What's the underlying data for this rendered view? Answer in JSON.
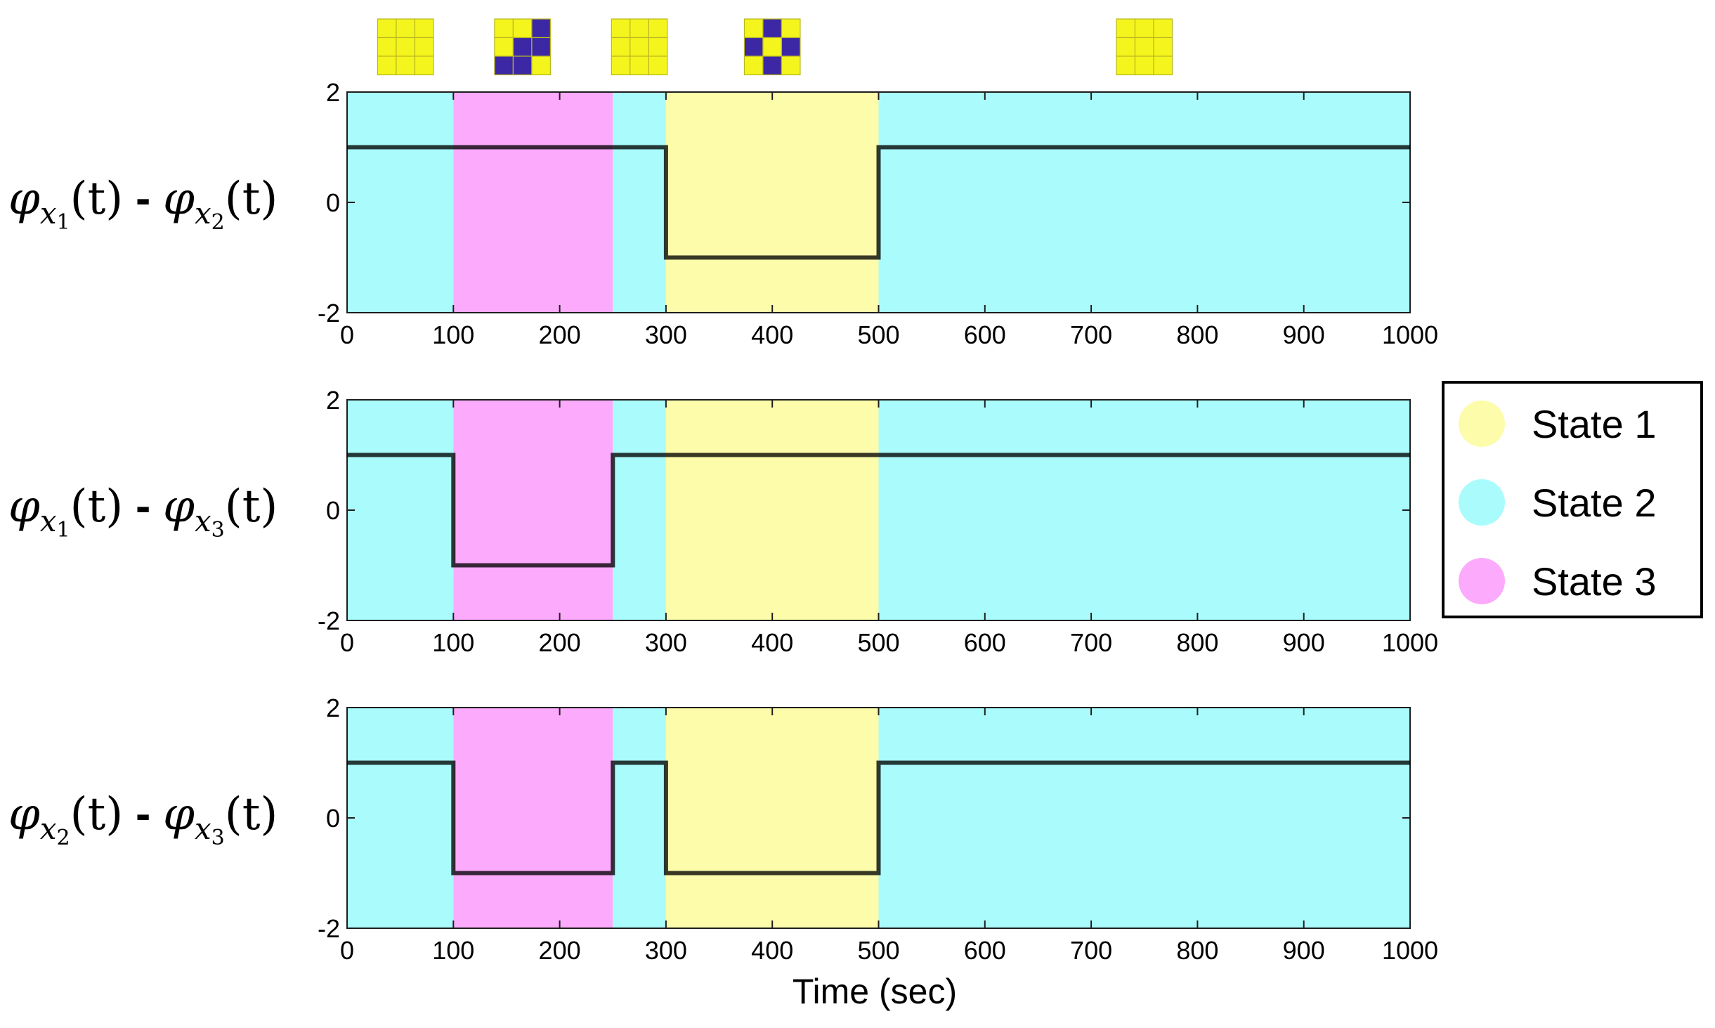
{
  "chart_data": {
    "type": "line",
    "xlabel": "Time (sec)",
    "xlim": [
      0,
      1000
    ],
    "ylim": [
      -2,
      2
    ],
    "xticks": [
      0,
      100,
      200,
      300,
      400,
      500,
      600,
      700,
      800,
      900,
      1000
    ],
    "yticks": [
      -2,
      0,
      2
    ],
    "states": [
      {
        "name": "State 1",
        "color": "#fcfcaa"
      },
      {
        "name": "State 2",
        "color": "#aafcfc"
      },
      {
        "name": "State 3",
        "color": "#fcaafc"
      }
    ],
    "state_intervals": [
      {
        "start": 0,
        "end": 100,
        "state": 2
      },
      {
        "start": 100,
        "end": 250,
        "state": 3
      },
      {
        "start": 250,
        "end": 300,
        "state": 2
      },
      {
        "start": 300,
        "end": 500,
        "state": 1
      },
      {
        "start": 500,
        "end": 1000,
        "state": 2
      }
    ],
    "panels": [
      {
        "ylabel": {
          "phi1": "φ",
          "sub1": "x",
          "subsub1": "1",
          "arg1": "(t)",
          "dash": "-",
          "phi2": "φ",
          "sub2": "x",
          "subsub2": "2",
          "arg2": "(t)"
        },
        "x": [
          0,
          300,
          300,
          500,
          500,
          1000
        ],
        "y": [
          1,
          1,
          -1,
          -1,
          1,
          1
        ]
      },
      {
        "ylabel": {
          "phi1": "φ",
          "sub1": "x",
          "subsub1": "1",
          "arg1": "(t)",
          "dash": "-",
          "phi2": "φ",
          "sub2": "x",
          "subsub2": "3",
          "arg2": "(t)"
        },
        "x": [
          0,
          100,
          100,
          250,
          250,
          1000
        ],
        "y": [
          1,
          1,
          -1,
          -1,
          1,
          1
        ]
      },
      {
        "ylabel": {
          "phi1": "φ",
          "sub1": "x",
          "subsub1": "2",
          "arg1": "(t)",
          "dash": "-",
          "phi2": "φ",
          "sub2": "x",
          "subsub2": "3",
          "arg2": "(t)"
        },
        "x": [
          0,
          100,
          100,
          250,
          250,
          300,
          300,
          500,
          500,
          1000
        ],
        "y": [
          1,
          1,
          -1,
          -1,
          1,
          1,
          -1,
          -1,
          1,
          1
        ]
      }
    ],
    "pattern_colors": {
      "on": "#f5f51e",
      "off": "#3c28a5"
    },
    "patterns": [
      {
        "at": 55,
        "grid": [
          [
            0,
            0,
            0
          ],
          [
            0,
            0,
            0
          ],
          [
            0,
            0,
            0
          ]
        ]
      },
      {
        "at": 165,
        "grid": [
          [
            0,
            0,
            1
          ],
          [
            0,
            1,
            1
          ],
          [
            1,
            1,
            0
          ]
        ]
      },
      {
        "at": 275,
        "grid": [
          [
            0,
            0,
            0
          ],
          [
            0,
            0,
            0
          ],
          [
            0,
            0,
            0
          ]
        ]
      },
      {
        "at": 400,
        "grid": [
          [
            0,
            1,
            0
          ],
          [
            1,
            0,
            1
          ],
          [
            0,
            1,
            0
          ]
        ]
      },
      {
        "at": 750,
        "grid": [
          [
            0,
            0,
            0
          ],
          [
            0,
            0,
            0
          ],
          [
            0,
            0,
            0
          ]
        ]
      }
    ],
    "legend": {
      "position": "right",
      "items": [
        "State 1",
        "State 2",
        "State 3"
      ]
    }
  }
}
